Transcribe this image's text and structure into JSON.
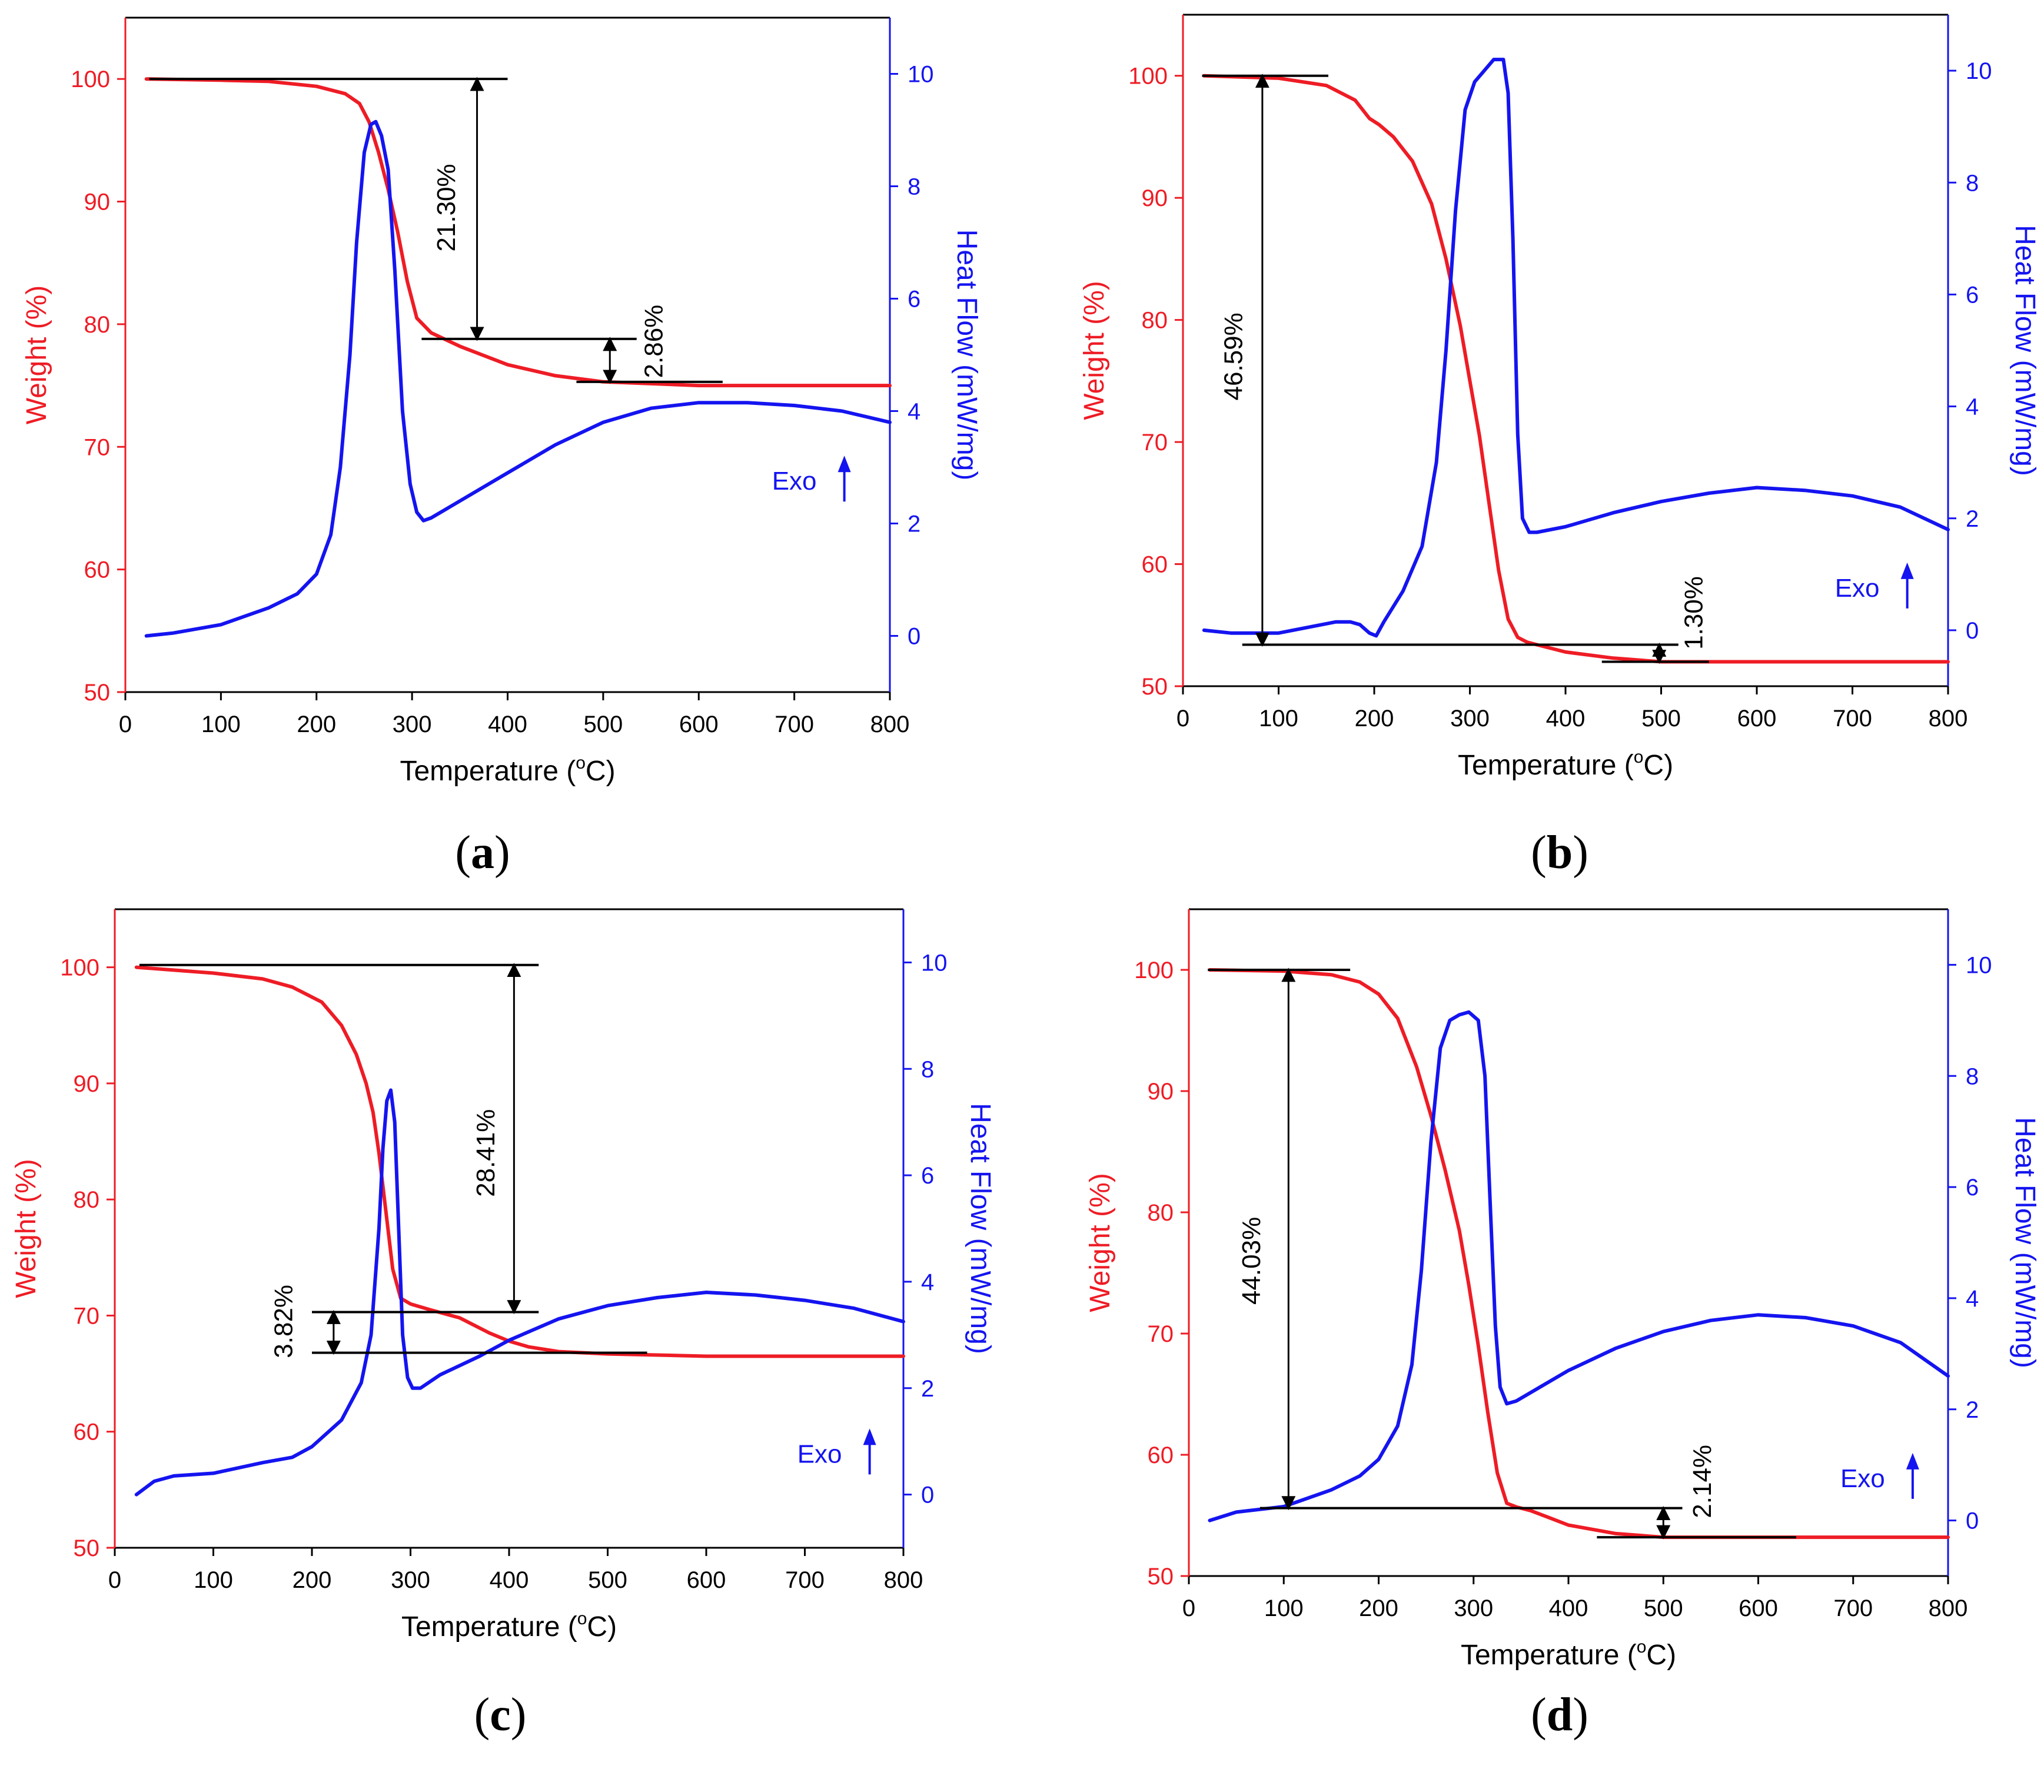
{
  "colors": {
    "weight": "#ee1c25",
    "heat": "#1414f0",
    "frame": "#000000",
    "annotation": "#000000"
  },
  "chart_data": [
    {
      "type": "line",
      "panel": "a",
      "caption_letter": "a",
      "xlabel": "Temperature (",
      "xlabel_unit": "C)",
      "xlabel_degree": "o",
      "ylabel_left": "Weight (%)",
      "ylabel_right": "Heat Flow (mW/mg)",
      "xlim": [
        0,
        800
      ],
      "ylim_left": [
        50,
        105
      ],
      "ylim_right": [
        -1,
        11
      ],
      "x_ticks": [
        0,
        100,
        200,
        300,
        400,
        500,
        600,
        700,
        800
      ],
      "y_left_ticks": [
        50,
        60,
        70,
        80,
        90,
        100
      ],
      "y_right_ticks": [
        0,
        2,
        4,
        6,
        8,
        10
      ],
      "exo_label": "Exo",
      "exo_pos": [
        700,
        2.6
      ],
      "series": [
        {
          "name": "Weight",
          "axis": "left",
          "x": [
            22,
            100,
            150,
            200,
            230,
            245,
            255,
            265,
            275,
            285,
            295,
            305,
            320,
            350,
            400,
            450,
            500,
            600,
            700,
            800
          ],
          "y": [
            100,
            99.9,
            99.8,
            99.4,
            98.8,
            98,
            96.5,
            94,
            91,
            87.5,
            83.5,
            80.5,
            79.3,
            78.2,
            76.7,
            75.8,
            75.3,
            75.0,
            75.0,
            75.0
          ]
        },
        {
          "name": "Heat Flow",
          "axis": "right",
          "x": [
            22,
            50,
            100,
            150,
            180,
            200,
            215,
            225,
            235,
            242,
            250,
            257,
            262,
            268,
            275,
            282,
            290,
            298,
            305,
            312,
            320,
            350,
            400,
            450,
            500,
            550,
            600,
            650,
            700,
            750,
            800
          ],
          "y": [
            0,
            0.05,
            0.2,
            0.5,
            0.75,
            1.1,
            1.8,
            3.0,
            5.0,
            7.0,
            8.6,
            9.1,
            9.15,
            8.9,
            8.3,
            6.5,
            4.0,
            2.7,
            2.2,
            2.05,
            2.1,
            2.4,
            2.9,
            3.4,
            3.8,
            4.05,
            4.15,
            4.15,
            4.1,
            4.0,
            3.8
          ]
        }
      ],
      "hlines": [
        {
          "x1": 25,
          "x2": 400,
          "y": 100
        },
        {
          "x1": 310,
          "x2": 535,
          "y": 78.8
        },
        {
          "x1": 472,
          "x2": 625,
          "y": 75.3
        }
      ],
      "vmeasures": [
        {
          "x": 368,
          "y1": 100,
          "y2": 78.8
        },
        {
          "x": 507,
          "y1": 78.8,
          "y2": 75.3
        }
      ],
      "annotations": [
        {
          "text": "21.30%",
          "x": 345,
          "y": 89.5
        },
        {
          "text": "2.86%",
          "x": 562,
          "y": 78.6
        }
      ]
    },
    {
      "type": "line",
      "panel": "b",
      "caption_letter": "b",
      "xlabel": "Temperature (",
      "xlabel_unit": "C)",
      "xlabel_degree": "o",
      "ylabel_left": "Weight (%)",
      "ylabel_right": "Heat Flow (mW/mg)",
      "xlim": [
        0,
        800
      ],
      "ylim_left": [
        50,
        105
      ],
      "ylim_right": [
        -1,
        11
      ],
      "x_ticks": [
        0,
        100,
        200,
        300,
        400,
        500,
        600,
        700,
        800
      ],
      "y_left_ticks": [
        50,
        60,
        70,
        80,
        90,
        100
      ],
      "y_right_ticks": [
        0,
        2,
        4,
        6,
        8,
        10
      ],
      "exo_label": "Exo",
      "exo_pos": [
        705,
        0.6
      ],
      "series": [
        {
          "name": "Weight",
          "axis": "left",
          "x": [
            22,
            100,
            150,
            180,
            195,
            205,
            220,
            240,
            260,
            275,
            290,
            300,
            310,
            320,
            330,
            340,
            350,
            360,
            380,
            400,
            450,
            500,
            600,
            700,
            800
          ],
          "y": [
            100,
            99.8,
            99.2,
            98,
            96.5,
            96,
            95,
            93,
            89.5,
            85,
            79.5,
            75,
            70.5,
            65,
            59.5,
            55.5,
            54,
            53.6,
            53.2,
            52.8,
            52.3,
            52.0,
            52.0,
            52.0,
            52.0
          ]
        },
        {
          "name": "Heat Flow",
          "axis": "right",
          "x": [
            22,
            50,
            100,
            130,
            160,
            175,
            185,
            195,
            202,
            210,
            230,
            250,
            265,
            275,
            285,
            295,
            305,
            315,
            325,
            330,
            335,
            340,
            345,
            350,
            355,
            362,
            370,
            400,
            450,
            500,
            550,
            600,
            650,
            700,
            750,
            800
          ],
          "y": [
            0,
            -0.05,
            -0.05,
            0.05,
            0.15,
            0.15,
            0.1,
            -0.05,
            -0.1,
            0.15,
            0.7,
            1.5,
            3.0,
            5.0,
            7.5,
            9.3,
            9.8,
            10.0,
            10.2,
            10.2,
            10.2,
            9.6,
            7.0,
            3.5,
            2.0,
            1.75,
            1.75,
            1.85,
            2.1,
            2.3,
            2.45,
            2.55,
            2.5,
            2.4,
            2.2,
            1.8
          ]
        }
      ],
      "hlines": [
        {
          "x1": 20,
          "x2": 152,
          "y": 100
        },
        {
          "x1": 62,
          "x2": 518,
          "y": 53.4
        },
        {
          "x1": 438,
          "x2": 550,
          "y": 52.0
        }
      ],
      "vmeasures": [
        {
          "x": 83,
          "y1": 100,
          "y2": 53.4
        },
        {
          "x": 498,
          "y1": 53.4,
          "y2": 52.0
        }
      ],
      "annotations": [
        {
          "text": "46.59%",
          "x": 62,
          "y": 77
        },
        {
          "text": "1.30%",
          "x": 543,
          "y": 56
        }
      ]
    },
    {
      "type": "line",
      "panel": "c",
      "caption_letter": "c",
      "xlabel": "Temperature (",
      "xlabel_unit": "C)",
      "xlabel_degree": "o",
      "ylabel_left": "Weight (%)",
      "ylabel_right": "Heat Flow (mW/mg)",
      "xlim": [
        0,
        800
      ],
      "ylim_left": [
        50,
        105
      ],
      "ylim_right": [
        -1,
        11
      ],
      "x_ticks": [
        0,
        100,
        200,
        300,
        400,
        500,
        600,
        700,
        800
      ],
      "y_left_ticks": [
        50,
        60,
        70,
        80,
        90,
        100
      ],
      "y_right_ticks": [
        0,
        2,
        4,
        6,
        8,
        10
      ],
      "exo_label": "Exo",
      "exo_pos": [
        715,
        0.6
      ],
      "series": [
        {
          "name": "Weight",
          "axis": "left",
          "x": [
            22,
            100,
            150,
            180,
            210,
            230,
            245,
            255,
            262,
            268,
            275,
            282,
            290,
            300,
            320,
            350,
            380,
            400,
            420,
            450,
            500,
            550,
            600,
            700,
            800
          ],
          "y": [
            100,
            99.5,
            99,
            98.3,
            97,
            95,
            92.5,
            90,
            87.5,
            84,
            79,
            74,
            71.5,
            71,
            70.5,
            69.8,
            68.5,
            67.8,
            67.3,
            66.9,
            66.7,
            66.6,
            66.5,
            66.5,
            66.5
          ]
        },
        {
          "name": "Heat Flow",
          "axis": "right",
          "x": [
            22,
            40,
            60,
            100,
            150,
            180,
            200,
            230,
            250,
            260,
            268,
            272,
            276,
            280,
            284,
            288,
            292,
            297,
            302,
            310,
            330,
            370,
            400,
            450,
            500,
            550,
            600,
            650,
            700,
            750,
            800
          ],
          "y": [
            0,
            0.25,
            0.35,
            0.4,
            0.6,
            0.7,
            0.9,
            1.4,
            2.1,
            3.0,
            5.0,
            6.5,
            7.4,
            7.6,
            7.0,
            5.0,
            3.0,
            2.2,
            2.0,
            2.0,
            2.25,
            2.6,
            2.9,
            3.3,
            3.55,
            3.7,
            3.8,
            3.75,
            3.65,
            3.5,
            3.25
          ]
        }
      ],
      "hlines": [
        {
          "x1": 25,
          "x2": 430,
          "y": 100.2
        },
        {
          "x1": 200,
          "x2": 430,
          "y": 70.3
        },
        {
          "x1": 200,
          "x2": 540,
          "y": 66.8
        }
      ],
      "vmeasures": [
        {
          "x": 405,
          "y1": 100.2,
          "y2": 70.3
        },
        {
          "x": 222,
          "y1": 70.3,
          "y2": 66.8
        }
      ],
      "annotations": [
        {
          "text": "28.41%",
          "x": 385,
          "y": 84
        },
        {
          "text": "3.82%",
          "x": 180,
          "y": 69.5
        }
      ]
    },
    {
      "type": "line",
      "panel": "d",
      "caption_letter": "d",
      "xlabel": "Temperature (",
      "xlabel_unit": "C)",
      "xlabel_degree": "o",
      "ylabel_left": "Weight (%)",
      "ylabel_right": "Heat Flow (mW/mg)",
      "xlim": [
        0,
        800
      ],
      "ylim_left": [
        50,
        105
      ],
      "ylim_right": [
        -1,
        11
      ],
      "x_ticks": [
        0,
        100,
        200,
        300,
        400,
        500,
        600,
        700,
        800
      ],
      "y_left_ticks": [
        50,
        60,
        70,
        80,
        90,
        100
      ],
      "y_right_ticks": [
        0,
        2,
        4,
        6,
        8,
        10
      ],
      "exo_label": "Exo",
      "exo_pos": [
        710,
        0.6
      ],
      "series": [
        {
          "name": "Weight",
          "axis": "left",
          "x": [
            22,
            100,
            150,
            180,
            200,
            220,
            240,
            255,
            270,
            285,
            295,
            305,
            315,
            325,
            335,
            345,
            360,
            380,
            400,
            450,
            500,
            600,
            700,
            800
          ],
          "y": [
            100,
            99.9,
            99.6,
            99,
            98,
            96,
            92,
            88,
            83.5,
            78.5,
            74,
            69,
            63.5,
            58.5,
            56,
            55.7,
            55.4,
            54.8,
            54.2,
            53.5,
            53.2,
            53.2,
            53.2,
            53.2
          ]
        },
        {
          "name": "Heat Flow",
          "axis": "right",
          "x": [
            22,
            50,
            100,
            150,
            180,
            200,
            220,
            235,
            245,
            255,
            265,
            275,
            285,
            295,
            305,
            312,
            318,
            323,
            328,
            335,
            345,
            370,
            400,
            450,
            500,
            550,
            600,
            650,
            700,
            750,
            800
          ],
          "y": [
            0,
            0.15,
            0.25,
            0.55,
            0.8,
            1.1,
            1.7,
            2.8,
            4.5,
            6.8,
            8.5,
            9.0,
            9.1,
            9.15,
            9.0,
            8.0,
            5.5,
            3.5,
            2.4,
            2.1,
            2.15,
            2.4,
            2.7,
            3.1,
            3.4,
            3.6,
            3.7,
            3.65,
            3.5,
            3.2,
            2.6
          ]
        }
      ],
      "hlines": [
        {
          "x1": 20,
          "x2": 170,
          "y": 100.0
        },
        {
          "x1": 75,
          "x2": 520,
          "y": 55.6
        },
        {
          "x1": 430,
          "x2": 640,
          "y": 53.2
        }
      ],
      "vmeasures": [
        {
          "x": 105,
          "y1": 100,
          "y2": 55.6
        },
        {
          "x": 500,
          "y1": 55.6,
          "y2": 53.2
        }
      ],
      "annotations": [
        {
          "text": "44.03%",
          "x": 75,
          "y": 76
        },
        {
          "text": "2.14%",
          "x": 550,
          "y": 57.8
        }
      ]
    }
  ]
}
